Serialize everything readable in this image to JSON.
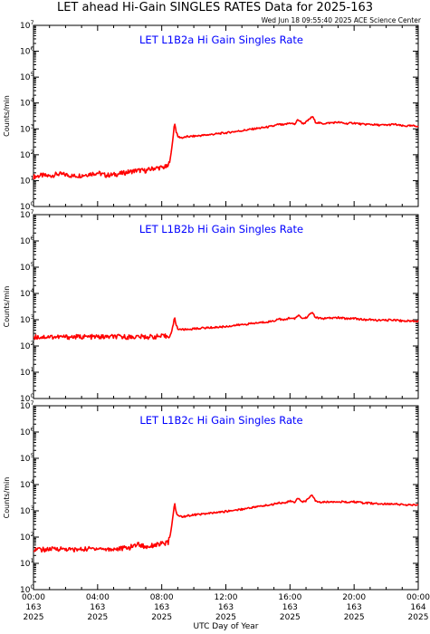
{
  "page": {
    "title": "LET ahead Hi-Gain SINGLES RATES Data for 2025-163",
    "timestamp": "Wed Jun 18 09:55:40 2025 ACE Science Center",
    "xlabel": "UTC Day of Year"
  },
  "colors": {
    "series": "#ff0000",
    "panel_title": "#0000ff",
    "axes": "#000000"
  },
  "chart_data": [
    {
      "type": "line",
      "title": "LET L1B2a Hi Gain Singles Rate",
      "ylabel": "Counts/min",
      "yscale": "log",
      "ylim": [
        1,
        10000000
      ],
      "y_ticks": [
        1,
        10,
        100,
        1000,
        10000,
        100000,
        1000000,
        10000000
      ],
      "xlim": [
        "00:00",
        "24:00"
      ],
      "grid": false,
      "series": [
        {
          "x": [
            0,
            0.5,
            1,
            1.5,
            2,
            2.5,
            3,
            3.5,
            4,
            4.5,
            5,
            5.5,
            6,
            6.5,
            7,
            7.5,
            8,
            8.4,
            8.6,
            8.8,
            8.9,
            9,
            9.3,
            9.6,
            10,
            10.5,
            11,
            11.5,
            12,
            12.5,
            13,
            13.5,
            14,
            14.5,
            15,
            15.3,
            15.6,
            16,
            16.3,
            16.5,
            16.8,
            17,
            17.4,
            17.6,
            18,
            18.5,
            19,
            19.5,
            20,
            20.5,
            21,
            21.5,
            22,
            22.5,
            23,
            23.5,
            24
          ],
          "values": [
            14,
            16,
            15,
            18,
            17,
            15,
            16,
            18,
            20,
            16,
            17,
            19,
            22,
            25,
            24,
            30,
            32,
            35,
            120,
            1800,
            800,
            500,
            450,
            500,
            520,
            560,
            600,
            650,
            700,
            780,
            850,
            950,
            1050,
            1150,
            1300,
            1500,
            1400,
            1700,
            1500,
            2300,
            1600,
            1800,
            3000,
            1800,
            1600,
            1700,
            1800,
            1600,
            1700,
            1500,
            1500,
            1400,
            1400,
            1500,
            1300,
            1300,
            1300
          ]
        }
      ]
    },
    {
      "type": "line",
      "title": "LET L1B2b Hi Gain Singles Rate",
      "ylabel": "Counts/min",
      "yscale": "log",
      "ylim": [
        1,
        10000000
      ],
      "y_ticks": [
        1,
        10,
        100,
        1000,
        10000,
        100000,
        1000000,
        10000000
      ],
      "xlim": [
        "00:00",
        "24:00"
      ],
      "grid": false,
      "series": [
        {
          "x": [
            0,
            0.5,
            1,
            1.5,
            2,
            2.5,
            3,
            3.5,
            4,
            4.5,
            5,
            5.5,
            6,
            6.5,
            7,
            7.5,
            8,
            8.4,
            8.6,
            8.8,
            8.9,
            9,
            9.3,
            9.6,
            10,
            10.5,
            11,
            11.5,
            12,
            12.5,
            13,
            13.5,
            14,
            14.5,
            15,
            15.3,
            15.6,
            16,
            16.3,
            16.5,
            16.8,
            17,
            17.4,
            17.6,
            18,
            18.5,
            19,
            19.5,
            20,
            20.5,
            21,
            21.5,
            22,
            22.5,
            23,
            23.5,
            24
          ],
          "values": [
            220,
            220,
            225,
            220,
            222,
            220,
            225,
            220,
            222,
            220,
            225,
            222,
            220,
            225,
            222,
            225,
            230,
            235,
            300,
            1200,
            650,
            450,
            420,
            430,
            450,
            480,
            500,
            520,
            550,
            600,
            650,
            700,
            760,
            820,
            900,
            1100,
            950,
            1200,
            1050,
            1500,
            1100,
            1200,
            1900,
            1200,
            1100,
            1150,
            1200,
            1100,
            1150,
            1000,
            1000,
            950,
            950,
            1000,
            900,
            900,
            900
          ]
        }
      ]
    },
    {
      "type": "line",
      "title": "LET L1B2c Hi Gain Singles Rate",
      "ylabel": "Counts/min",
      "yscale": "log",
      "ylim": [
        1,
        10000000
      ],
      "y_ticks": [
        1,
        10,
        100,
        1000,
        10000,
        100000,
        1000000,
        10000000
      ],
      "xlim": [
        "00:00",
        "24:00"
      ],
      "grid": false,
      "series": [
        {
          "x": [
            0,
            0.5,
            1,
            1.5,
            2,
            2.5,
            3,
            3.5,
            4,
            4.5,
            5,
            5.5,
            6,
            6.5,
            7,
            7.5,
            8,
            8.4,
            8.6,
            8.8,
            8.9,
            9,
            9.3,
            9.6,
            10,
            10.5,
            11,
            11.5,
            12,
            12.5,
            13,
            13.5,
            14,
            14.5,
            15,
            15.3,
            15.6,
            16,
            16.3,
            16.5,
            16.8,
            17,
            17.4,
            17.6,
            18,
            18.5,
            19,
            19.5,
            20,
            20.5,
            21,
            21.5,
            22,
            22.5,
            23,
            23.5,
            24
          ],
          "values": [
            35,
            33,
            34,
            36,
            35,
            33,
            34,
            36,
            38,
            34,
            35,
            37,
            40,
            55,
            42,
            50,
            55,
            60,
            200,
            2000,
            900,
            650,
            600,
            650,
            700,
            750,
            800,
            870,
            950,
            1050,
            1150,
            1300,
            1450,
            1600,
            1800,
            2100,
            1900,
            2400,
            2000,
            3100,
            2200,
            2400,
            4000,
            2300,
            2100,
            2200,
            2300,
            2100,
            2200,
            2000,
            1950,
            1850,
            1800,
            1900,
            1700,
            1650,
            1650
          ]
        }
      ]
    }
  ],
  "x_axis": {
    "ticks": [
      {
        "hour": 0,
        "lines": [
          "00:00",
          "163",
          "2025"
        ]
      },
      {
        "hour": 4,
        "lines": [
          "04:00",
          "163",
          "2025"
        ]
      },
      {
        "hour": 8,
        "lines": [
          "08:00",
          "163",
          "2025"
        ]
      },
      {
        "hour": 12,
        "lines": [
          "12:00",
          "163",
          "2025"
        ]
      },
      {
        "hour": 16,
        "lines": [
          "16:00",
          "163",
          "2025"
        ]
      },
      {
        "hour": 20,
        "lines": [
          "20:00",
          "163",
          "2025"
        ]
      },
      {
        "hour": 24,
        "lines": [
          "00:00",
          "164",
          "2025"
        ]
      }
    ]
  }
}
